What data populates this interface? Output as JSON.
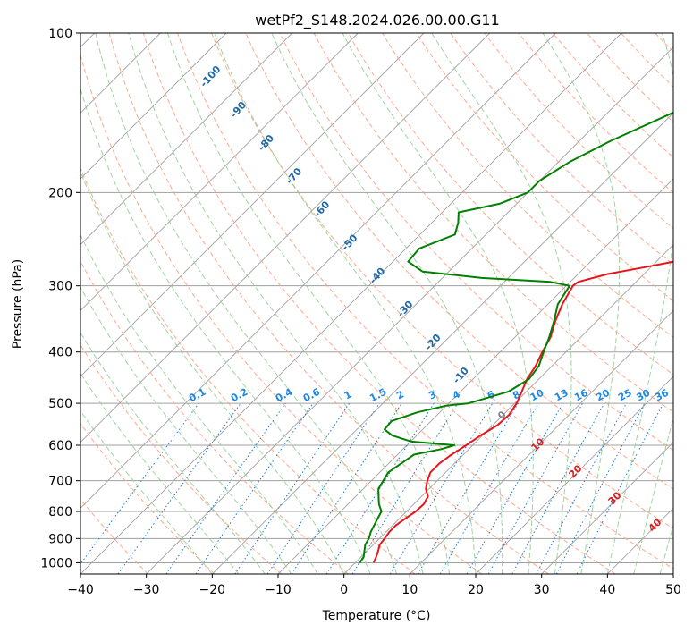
{
  "chart_data": {
    "type": "line",
    "subtype": "skew-T log-P diagram",
    "title": "wetPf2_S148.2024.026.00.00.G11",
    "xlabel": "Temperature (°C)",
    "ylabel": "Pressure (hPa)",
    "xlim": [
      -40,
      50
    ],
    "ylim": [
      1050,
      100
    ],
    "y_scale": "log",
    "x_ticks": [
      -40,
      -30,
      -20,
      -10,
      0,
      10,
      20,
      30,
      40,
      50
    ],
    "y_ticks": [
      100,
      200,
      300,
      400,
      500,
      600,
      700,
      800,
      900,
      1000
    ],
    "grid": true,
    "series": [
      {
        "color": "#e8141c",
        "comment": "temperature profile",
        "points": [
          [
            1000,
            2.8
          ],
          [
            975,
            2.3
          ],
          [
            950,
            1.7
          ],
          [
            925,
            1.0
          ],
          [
            900,
            0.8
          ],
          [
            875,
            0.5
          ],
          [
            850,
            0.5
          ],
          [
            825,
            0.9
          ],
          [
            800,
            1.4
          ],
          [
            775,
            1.5
          ],
          [
            750,
            1.0
          ],
          [
            725,
            -0.5
          ],
          [
            700,
            -1.5
          ],
          [
            675,
            -2.3
          ],
          [
            650,
            -2.3
          ],
          [
            625,
            -1.8
          ],
          [
            600,
            -1.0
          ],
          [
            575,
            -0.3
          ],
          [
            550,
            0.7
          ],
          [
            525,
            0.9
          ],
          [
            500,
            0.3
          ],
          [
            475,
            -0.7
          ],
          [
            450,
            -1.8
          ],
          [
            425,
            -2.5
          ],
          [
            400,
            -3.6
          ],
          [
            375,
            -4.6
          ],
          [
            350,
            -6.3
          ],
          [
            325,
            -7.8
          ],
          [
            300,
            -9.0
          ],
          [
            295,
            -8.8
          ],
          [
            285,
            -5.5
          ],
          [
            275,
            0.0
          ],
          [
            265,
            5.3
          ],
          [
            255,
            10.0
          ],
          [
            245,
            13.6
          ],
          [
            235,
            16.3
          ],
          [
            225,
            18.6
          ],
          [
            212,
            21.0
          ],
          [
            200,
            23.1
          ],
          [
            185,
            25.6
          ],
          [
            170,
            27.4
          ],
          [
            160,
            28.5
          ],
          [
            150,
            30.4
          ],
          [
            140,
            31.8
          ],
          [
            130,
            33.4
          ],
          [
            120,
            35.1
          ],
          [
            110,
            37.2
          ],
          [
            100,
            40.6
          ]
        ]
      },
      {
        "color": "#008000",
        "comment": "dewpoint profile",
        "points": [
          [
            1000,
            0.7
          ],
          [
            975,
            0.4
          ],
          [
            950,
            -0.4
          ],
          [
            925,
            -1.2
          ],
          [
            900,
            -1.6
          ],
          [
            875,
            -2.3
          ],
          [
            850,
            -2.8
          ],
          [
            825,
            -3.3
          ],
          [
            800,
            -3.8
          ],
          [
            775,
            -5.3
          ],
          [
            750,
            -6.5
          ],
          [
            725,
            -7.7
          ],
          [
            700,
            -8.2
          ],
          [
            675,
            -8.7
          ],
          [
            650,
            -8.1
          ],
          [
            625,
            -7.5
          ],
          [
            610,
            -4.2
          ],
          [
            600,
            -2.8
          ],
          [
            590,
            -10.0
          ],
          [
            575,
            -13.7
          ],
          [
            560,
            -15.8
          ],
          [
            540,
            -16.0
          ],
          [
            520,
            -13.4
          ],
          [
            505,
            -10.0
          ],
          [
            500,
            -7.0
          ],
          [
            475,
            -2.7
          ],
          [
            450,
            -1.5
          ],
          [
            425,
            -2.0
          ],
          [
            400,
            -3.4
          ],
          [
            375,
            -4.8
          ],
          [
            350,
            -6.5
          ],
          [
            325,
            -8.5
          ],
          [
            300,
            -9.5
          ],
          [
            295,
            -13.0
          ],
          [
            290,
            -24.0
          ],
          [
            282,
            -34.0
          ],
          [
            270,
            -37.7
          ],
          [
            255,
            -38.0
          ],
          [
            240,
            -34.7
          ],
          [
            228,
            -36.0
          ],
          [
            218,
            -37.5
          ],
          [
            210,
            -32.6
          ],
          [
            200,
            -30.0
          ],
          [
            190,
            -30.0
          ],
          [
            175,
            -28.3
          ],
          [
            160,
            -25.3
          ],
          [
            140,
            -19.7
          ],
          [
            120,
            -13.2
          ],
          [
            100,
            -1.3
          ]
        ]
      }
    ],
    "dry_adiabat_labels": [
      "-100",
      "-90",
      "-80",
      "-70",
      "-60",
      "-50",
      "-40",
      "-30",
      "-20",
      "-10"
    ],
    "dry_adiabat_values": [
      -100,
      -90,
      -80,
      -70,
      -60,
      -50,
      -40,
      -30,
      -20,
      -10
    ],
    "moist_adiabat_labels": [
      "0",
      "10",
      "20",
      "30",
      "40"
    ],
    "moist_adiabat_values": [
      0,
      10,
      20,
      30,
      40
    ],
    "mixing_ratio_labels": [
      "0.1",
      "0.2",
      "0.4",
      "0.6",
      "1",
      "1.5",
      "2",
      "3",
      "4",
      "6",
      "8",
      "10",
      "13",
      "16",
      "20",
      "25",
      "30",
      "36"
    ],
    "mixing_ratio_values": [
      0.1,
      0.2,
      0.4,
      0.6,
      1,
      1.5,
      2,
      3,
      4,
      6,
      8,
      10,
      13,
      16,
      20,
      25,
      30,
      36
    ],
    "colors": {
      "isotherm": "#a0a0a0",
      "isobar": "#a0a0a0",
      "dry_adiabat": "#ff9e80",
      "moist_adiabat": "#8fcc8f",
      "mixing_ratio": "#1e78dc",
      "dry_label": "#1f6aa8",
      "moist_label": "#d42020",
      "mixing_label": "#1e88e5"
    }
  }
}
